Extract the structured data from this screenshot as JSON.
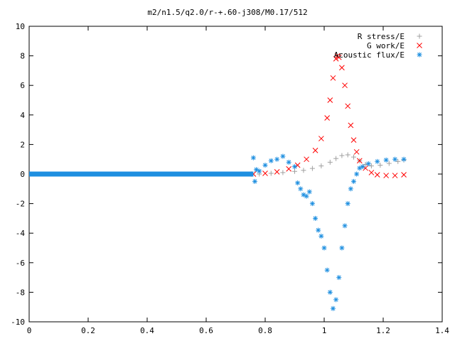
{
  "chart_data": {
    "type": "scatter",
    "title": "m2/n1.5/q2.0/r-+.60-j308/M0.17/512",
    "xlabel": "",
    "ylabel": "",
    "xlim": [
      0,
      1.4
    ],
    "ylim": [
      -10,
      10
    ],
    "grid": false,
    "legend_position": "top-right",
    "x_ticks": [
      "0",
      "0.2",
      "0.4",
      "0.6",
      "0.8",
      "1",
      "1.2",
      "1.4"
    ],
    "y_ticks": [
      "10",
      "8",
      "6",
      "4",
      "2",
      "0",
      "-2",
      "-4",
      "-6",
      "-8",
      "-10"
    ],
    "series": [
      {
        "name": "R stress/E",
        "marker": "plus",
        "color": "#a0a0a0",
        "points": [
          [
            0.78,
            0.0
          ],
          [
            0.82,
            0.05
          ],
          [
            0.86,
            0.1
          ],
          [
            0.9,
            0.18
          ],
          [
            0.93,
            0.25
          ],
          [
            0.96,
            0.38
          ],
          [
            0.99,
            0.55
          ],
          [
            1.02,
            0.8
          ],
          [
            1.04,
            1.05
          ],
          [
            1.06,
            1.25
          ],
          [
            1.08,
            1.3
          ],
          [
            1.1,
            1.15
          ],
          [
            1.12,
            0.9
          ],
          [
            1.14,
            0.65
          ],
          [
            1.16,
            0.55
          ],
          [
            1.19,
            0.6
          ],
          [
            1.22,
            0.72
          ],
          [
            1.25,
            0.85
          ],
          [
            1.27,
            0.95
          ]
        ]
      },
      {
        "name": "G work/E",
        "marker": "cross",
        "color": "#ff0000",
        "points": [
          [
            0.76,
            0.0
          ],
          [
            0.8,
            0.05
          ],
          [
            0.84,
            0.15
          ],
          [
            0.88,
            0.35
          ],
          [
            0.91,
            0.6
          ],
          [
            0.94,
            1.0
          ],
          [
            0.97,
            1.6
          ],
          [
            0.99,
            2.4
          ],
          [
            1.01,
            3.8
          ],
          [
            1.02,
            5.0
          ],
          [
            1.03,
            6.5
          ],
          [
            1.04,
            7.8
          ],
          [
            1.045,
            8.0
          ],
          [
            1.05,
            7.9
          ],
          [
            1.06,
            7.2
          ],
          [
            1.07,
            6.0
          ],
          [
            1.08,
            4.6
          ],
          [
            1.09,
            3.3
          ],
          [
            1.1,
            2.3
          ],
          [
            1.11,
            1.5
          ],
          [
            1.12,
            0.9
          ],
          [
            1.14,
            0.4
          ],
          [
            1.16,
            0.1
          ],
          [
            1.18,
            -0.05
          ],
          [
            1.21,
            -0.1
          ],
          [
            1.24,
            -0.1
          ],
          [
            1.27,
            -0.05
          ]
        ]
      },
      {
        "name": "Acoustic flux/E",
        "marker": "star",
        "color": "#1e8fe0",
        "points": [
          [
            0.76,
            1.1
          ],
          [
            0.765,
            -0.5
          ],
          [
            0.77,
            0.3
          ],
          [
            0.78,
            0.2
          ],
          [
            0.8,
            0.6
          ],
          [
            0.82,
            0.9
          ],
          [
            0.84,
            1.0
          ],
          [
            0.86,
            1.2
          ],
          [
            0.88,
            0.8
          ],
          [
            0.9,
            0.5
          ],
          [
            0.91,
            -0.6
          ],
          [
            0.92,
            -1.0
          ],
          [
            0.93,
            -1.4
          ],
          [
            0.94,
            -1.5
          ],
          [
            0.95,
            -1.2
          ],
          [
            0.96,
            -2.0
          ],
          [
            0.97,
            -3.0
          ],
          [
            0.98,
            -3.8
          ],
          [
            0.99,
            -4.2
          ],
          [
            1.0,
            -5.0
          ],
          [
            1.01,
            -6.5
          ],
          [
            1.02,
            -8.0
          ],
          [
            1.03,
            -9.1
          ],
          [
            1.04,
            -8.5
          ],
          [
            1.05,
            -7.0
          ],
          [
            1.06,
            -5.0
          ],
          [
            1.07,
            -3.5
          ],
          [
            1.08,
            -2.0
          ],
          [
            1.09,
            -1.0
          ],
          [
            1.1,
            -0.5
          ],
          [
            1.11,
            0.0
          ],
          [
            1.12,
            0.4
          ],
          [
            1.13,
            0.5
          ],
          [
            1.15,
            0.7
          ],
          [
            1.18,
            0.85
          ],
          [
            1.21,
            0.95
          ],
          [
            1.24,
            1.0
          ],
          [
            1.27,
            1.0
          ]
        ],
        "baseline": {
          "x_from": 0.0,
          "x_to": 0.76,
          "y": 0.0
        }
      }
    ]
  }
}
